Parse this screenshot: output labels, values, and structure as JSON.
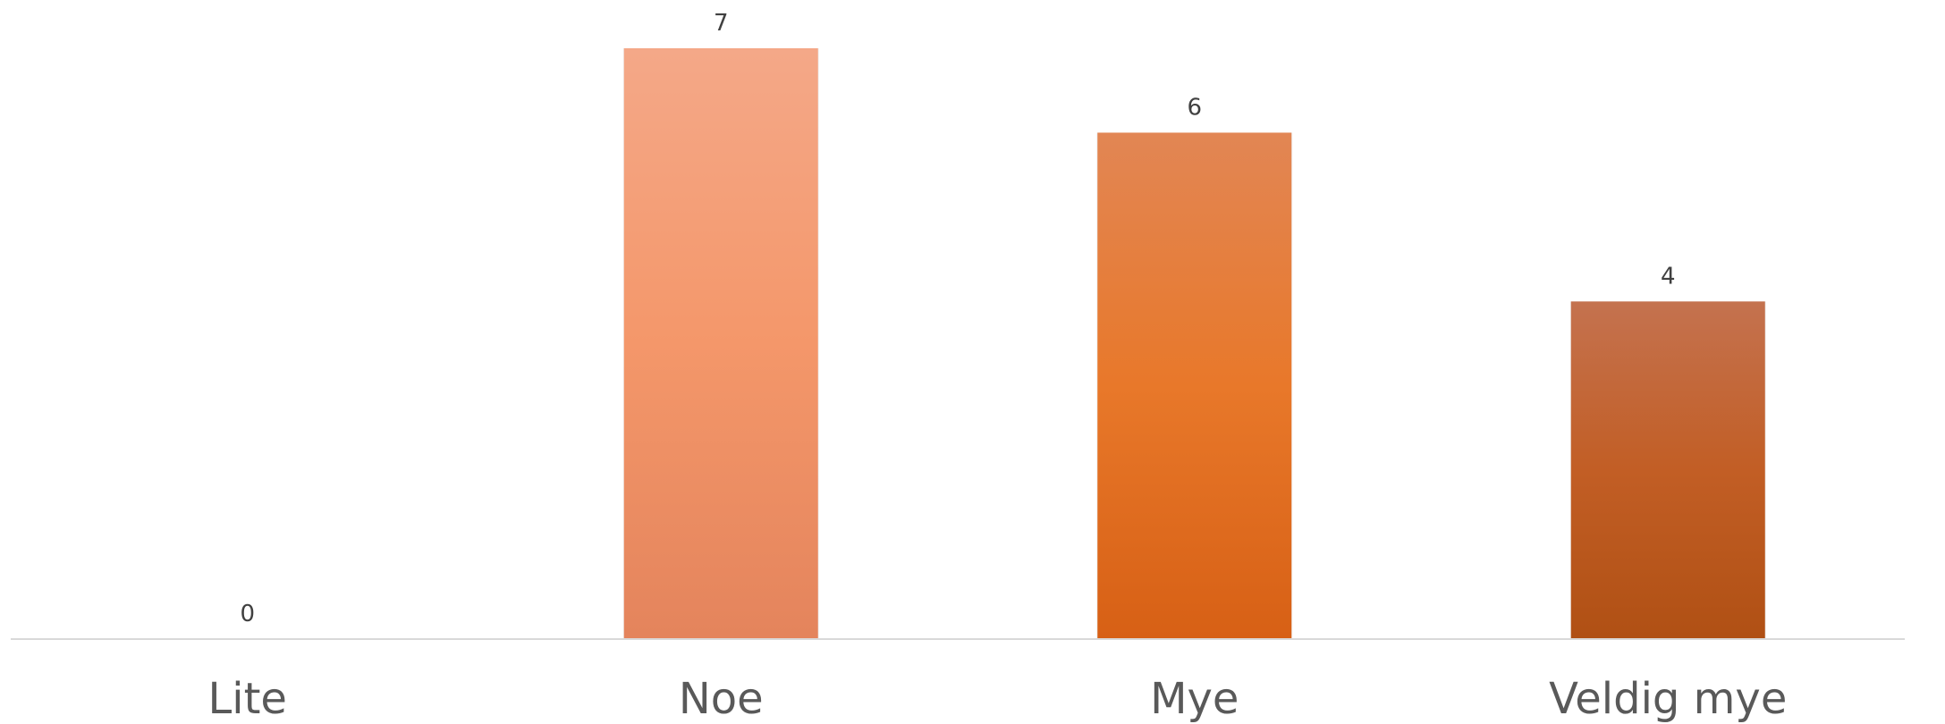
{
  "chart_data": {
    "type": "bar",
    "categories": [
      "Lite",
      "Noe",
      "Mye",
      "Veldig mye"
    ],
    "values": [
      0,
      7,
      6,
      4
    ],
    "title": "",
    "xlabel": "",
    "ylabel": "",
    "ylim": [
      0,
      7
    ],
    "grid": false,
    "legend": "none",
    "data_labels": true,
    "colors": [
      {
        "top": "#F2A582",
        "mid": "#F4976A",
        "bottom": "#E4845C"
      },
      {
        "top": "#F4A888",
        "mid": "#F4976A",
        "bottom": "#E4845C"
      },
      {
        "top": "#E28654",
        "mid": "#E8782A",
        "bottom": "#D76015"
      },
      {
        "top": "#C4724F",
        "mid": "#C25E25",
        "bottom": "#B05014"
      }
    ],
    "axis_color": "#D9D9D9"
  }
}
